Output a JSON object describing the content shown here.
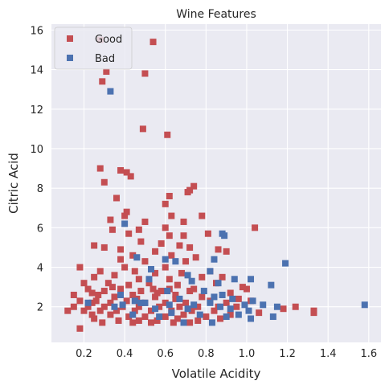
{
  "chart_data": {
    "type": "scatter",
    "title": "Wine Features",
    "xlabel": "Volatile Acidity",
    "ylabel": "Citric Acid",
    "xlim": [
      0.04,
      1.66
    ],
    "ylim": [
      0.2,
      16.3
    ],
    "xticks": [
      "0.2",
      "0.4",
      "0.6",
      "0.8",
      "1.0",
      "1.2",
      "1.4",
      "1.6"
    ],
    "yticks": [
      "2",
      "4",
      "6",
      "8",
      "10",
      "12",
      "14",
      "16"
    ],
    "grid": true,
    "legend_position": "top-left",
    "series": [
      {
        "name": "Good",
        "color": "#c44e52",
        "marker": "square",
        "points": [
          [
            0.28,
            15.5
          ],
          [
            0.54,
            15.4
          ],
          [
            0.31,
            13.9
          ],
          [
            0.5,
            13.8
          ],
          [
            0.29,
            13.4
          ],
          [
            0.49,
            11.0
          ],
          [
            0.61,
            10.7
          ],
          [
            0.28,
            9.0
          ],
          [
            0.38,
            8.9
          ],
          [
            0.41,
            8.8
          ],
          [
            0.3,
            8.3
          ],
          [
            0.43,
            8.6
          ],
          [
            0.74,
            8.1
          ],
          [
            0.72,
            7.9
          ],
          [
            0.71,
            7.8
          ],
          [
            0.62,
            7.6
          ],
          [
            0.36,
            7.5
          ],
          [
            0.6,
            7.2
          ],
          [
            0.41,
            6.8
          ],
          [
            0.4,
            6.6
          ],
          [
            0.63,
            6.6
          ],
          [
            0.78,
            6.6
          ],
          [
            0.33,
            6.4
          ],
          [
            0.5,
            6.3
          ],
          [
            0.69,
            6.3
          ],
          [
            1.04,
            6.0
          ],
          [
            0.6,
            6.0
          ],
          [
            0.34,
            5.9
          ],
          [
            0.47,
            5.9
          ],
          [
            0.42,
            5.7
          ],
          [
            0.62,
            5.6
          ],
          [
            0.69,
            5.6
          ],
          [
            0.81,
            5.7
          ],
          [
            0.25,
            5.1
          ],
          [
            0.3,
            5.0
          ],
          [
            0.48,
            5.3
          ],
          [
            0.58,
            5.2
          ],
          [
            0.67,
            5.1
          ],
          [
            0.72,
            5.0
          ],
          [
            0.38,
            4.9
          ],
          [
            0.55,
            4.8
          ],
          [
            0.86,
            4.9
          ],
          [
            0.9,
            4.8
          ],
          [
            0.44,
            4.6
          ],
          [
            0.63,
            4.6
          ],
          [
            0.75,
            4.5
          ],
          [
            0.38,
            4.4
          ],
          [
            0.5,
            4.3
          ],
          [
            0.7,
            4.3
          ],
          [
            0.18,
            4.0
          ],
          [
            0.4,
            4.0
          ],
          [
            0.6,
            4.0
          ],
          [
            0.28,
            3.8
          ],
          [
            0.45,
            3.8
          ],
          [
            0.55,
            3.7
          ],
          [
            0.68,
            3.7
          ],
          [
            0.82,
            3.8
          ],
          [
            0.25,
            3.5
          ],
          [
            0.35,
            3.6
          ],
          [
            0.47,
            3.4
          ],
          [
            0.62,
            3.4
          ],
          [
            0.78,
            3.5
          ],
          [
            0.88,
            3.5
          ],
          [
            0.2,
            3.2
          ],
          [
            0.32,
            3.2
          ],
          [
            0.42,
            3.1
          ],
          [
            0.52,
            3.2
          ],
          [
            0.66,
            3.1
          ],
          [
            0.85,
            3.2
          ],
          [
            0.98,
            3.0
          ],
          [
            1.0,
            2.9
          ],
          [
            0.22,
            2.9
          ],
          [
            0.3,
            2.8
          ],
          [
            0.38,
            2.9
          ],
          [
            0.48,
            2.8
          ],
          [
            0.58,
            2.8
          ],
          [
            0.72,
            2.8
          ],
          [
            0.92,
            2.7
          ],
          [
            0.15,
            2.6
          ],
          [
            0.27,
            2.6
          ],
          [
            0.35,
            2.5
          ],
          [
            0.44,
            2.6
          ],
          [
            0.55,
            2.5
          ],
          [
            0.65,
            2.6
          ],
          [
            0.78,
            2.5
          ],
          [
            0.96,
            2.4
          ],
          [
            1.02,
            2.3
          ],
          [
            0.18,
            2.3
          ],
          [
            0.26,
            2.3
          ],
          [
            0.33,
            2.2
          ],
          [
            0.41,
            2.3
          ],
          [
            0.5,
            2.2
          ],
          [
            0.6,
            2.2
          ],
          [
            0.7,
            2.2
          ],
          [
            0.82,
            2.3
          ],
          [
            0.9,
            2.2
          ],
          [
            0.15,
            2.0
          ],
          [
            0.22,
            2.0
          ],
          [
            0.3,
            2.0
          ],
          [
            0.39,
            2.0
          ],
          [
            0.47,
            2.0
          ],
          [
            0.57,
            2.0
          ],
          [
            0.67,
            2.0
          ],
          [
            0.76,
            2.0
          ],
          [
            0.86,
            2.0
          ],
          [
            0.95,
            2.0
          ],
          [
            1.18,
            1.9
          ],
          [
            1.24,
            2.0
          ],
          [
            0.12,
            1.8
          ],
          [
            0.2,
            1.8
          ],
          [
            0.28,
            1.8
          ],
          [
            0.36,
            1.8
          ],
          [
            0.45,
            1.8
          ],
          [
            0.53,
            1.8
          ],
          [
            0.63,
            1.8
          ],
          [
            0.73,
            1.8
          ],
          [
            0.84,
            1.8
          ],
          [
            1.06,
            1.7
          ],
          [
            1.33,
            1.8
          ],
          [
            1.33,
            1.7
          ],
          [
            0.24,
            1.6
          ],
          [
            0.33,
            1.6
          ],
          [
            0.42,
            1.5
          ],
          [
            0.5,
            1.5
          ],
          [
            0.6,
            1.5
          ],
          [
            0.69,
            1.6
          ],
          [
            0.8,
            1.5
          ],
          [
            0.92,
            1.6
          ],
          [
            0.25,
            1.4
          ],
          [
            0.37,
            1.3
          ],
          [
            0.47,
            1.3
          ],
          [
            0.56,
            1.3
          ],
          [
            0.66,
            1.4
          ],
          [
            0.76,
            1.3
          ],
          [
            0.87,
            1.4
          ],
          [
            0.29,
            1.2
          ],
          [
            0.44,
            1.2
          ],
          [
            0.53,
            1.2
          ],
          [
            0.64,
            1.2
          ],
          [
            0.72,
            1.2
          ],
          [
            0.18,
            0.9
          ],
          [
            0.24,
            2.7
          ],
          [
            0.34,
            3.0
          ],
          [
            0.46,
            2.4
          ],
          [
            0.54,
            2.9
          ],
          [
            0.65,
            2.4
          ],
          [
            0.74,
            2.9
          ],
          [
            0.24,
            2.2
          ],
          [
            0.56,
            2.7
          ],
          [
            0.62,
            2.9
          ]
        ]
      },
      {
        "name": "Bad",
        "color": "#4c72b0",
        "marker": "square",
        "points": [
          [
            0.33,
            12.9
          ],
          [
            0.4,
            6.2
          ],
          [
            0.88,
            5.7
          ],
          [
            0.89,
            5.6
          ],
          [
            1.19,
            4.2
          ],
          [
            0.46,
            4.5
          ],
          [
            0.6,
            4.4
          ],
          [
            0.65,
            4.3
          ],
          [
            0.84,
            4.4
          ],
          [
            0.53,
            3.9
          ],
          [
            0.82,
            3.8
          ],
          [
            0.71,
            3.6
          ],
          [
            0.52,
            3.4
          ],
          [
            0.94,
            3.4
          ],
          [
            1.02,
            3.4
          ],
          [
            0.73,
            3.3
          ],
          [
            0.86,
            3.2
          ],
          [
            1.12,
            3.1
          ],
          [
            0.38,
            2.6
          ],
          [
            0.61,
            2.8
          ],
          [
            0.79,
            2.8
          ],
          [
            0.84,
            2.5
          ],
          [
            0.88,
            2.6
          ],
          [
            0.93,
            2.4
          ],
          [
            0.45,
            2.3
          ],
          [
            0.48,
            2.2
          ],
          [
            0.67,
            2.4
          ],
          [
            0.82,
            2.2
          ],
          [
            1.03,
            2.3
          ],
          [
            0.22,
            2.2
          ],
          [
            0.39,
            2.1
          ],
          [
            0.5,
            2.2
          ],
          [
            0.62,
            2.1
          ],
          [
            0.74,
            2.1
          ],
          [
            0.87,
            2.0
          ],
          [
            0.99,
            2.1
          ],
          [
            1.08,
            2.1
          ],
          [
            1.58,
            2.1
          ],
          [
            0.35,
            2.0
          ],
          [
            0.55,
            1.9
          ],
          [
            0.71,
            1.9
          ],
          [
            0.92,
            1.9
          ],
          [
            1.01,
            1.8
          ],
          [
            1.15,
            2.0
          ],
          [
            0.44,
            1.6
          ],
          [
            0.63,
            1.7
          ],
          [
            0.77,
            1.6
          ],
          [
            0.96,
            1.6
          ],
          [
            1.13,
            1.5
          ],
          [
            0.57,
            1.5
          ],
          [
            0.9,
            1.5
          ],
          [
            1.02,
            1.4
          ],
          [
            0.69,
            1.2
          ],
          [
            0.83,
            1.2
          ]
        ]
      }
    ]
  }
}
